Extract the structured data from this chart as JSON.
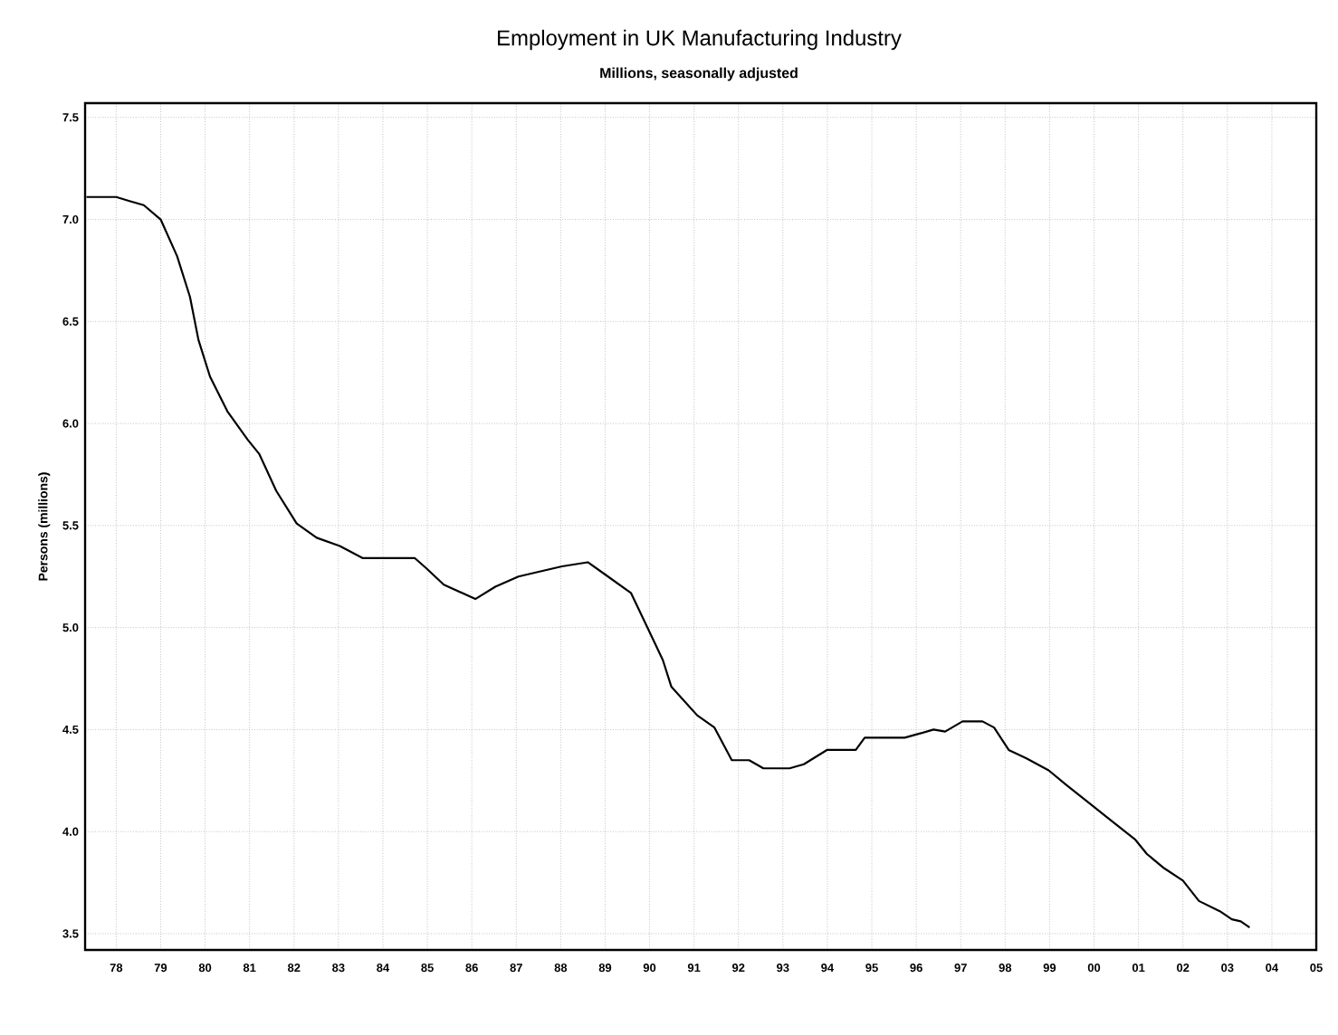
{
  "chart_data": {
    "type": "line",
    "title": "Employment in UK Manufacturing Industry",
    "subtitle": "Millions, seasonally adjusted",
    "ylabel": "Persons (millions)",
    "x": [
      1977.33,
      1978.0,
      1978.3,
      1978.62,
      1979.0,
      1979.37,
      1979.66,
      1979.85,
      1980.11,
      1980.5,
      1980.96,
      1981.22,
      1981.6,
      1982.06,
      1982.51,
      1983.03,
      1983.55,
      1984.72,
      1984.98,
      1985.37,
      1986.08,
      1986.53,
      1987.05,
      1987.44,
      1988.03,
      1988.61,
      1989.0,
      1989.58,
      1990.04,
      1990.3,
      1990.49,
      1991.07,
      1991.46,
      1991.85,
      1992.24,
      1992.56,
      1993.15,
      1993.47,
      1993.99,
      1994.64,
      1994.84,
      1995.74,
      1996.07,
      1996.39,
      1996.65,
      1997.04,
      1997.49,
      1997.75,
      1998.08,
      1998.47,
      1998.98,
      1999.37,
      1999.89,
      2000.35,
      2000.93,
      2001.19,
      2001.58,
      2002.0,
      2002.36,
      2002.83,
      2003.1,
      2003.3,
      2003.5
    ],
    "values": [
      7.11,
      7.11,
      7.09,
      7.07,
      7.0,
      6.82,
      6.62,
      6.41,
      6.23,
      6.06,
      5.92,
      5.85,
      5.67,
      5.51,
      5.44,
      5.4,
      5.34,
      5.34,
      5.29,
      5.21,
      5.14,
      5.2,
      5.25,
      5.27,
      5.3,
      5.32,
      5.26,
      5.17,
      4.96,
      4.84,
      4.71,
      4.57,
      4.51,
      4.35,
      4.35,
      4.31,
      4.31,
      4.33,
      4.4,
      4.4,
      4.46,
      4.46,
      4.48,
      4.5,
      4.49,
      4.54,
      4.54,
      4.51,
      4.4,
      4.36,
      4.3,
      4.23,
      4.14,
      4.06,
      3.96,
      3.89,
      3.82,
      3.76,
      3.66,
      3.61,
      3.57,
      3.56,
      3.53
    ],
    "color": "#000000",
    "line_style": "solid",
    "grid": true,
    "xlim": [
      1977.3,
      2005
    ],
    "ylim": [
      3.42,
      7.57
    ],
    "xticks": [
      {
        "value": 1978,
        "label": "78"
      },
      {
        "value": 1979,
        "label": "79"
      },
      {
        "value": 1980,
        "label": "80"
      },
      {
        "value": 1981,
        "label": "81"
      },
      {
        "value": 1982,
        "label": "82"
      },
      {
        "value": 1983,
        "label": "83"
      },
      {
        "value": 1984,
        "label": "84"
      },
      {
        "value": 1985,
        "label": "85"
      },
      {
        "value": 1986,
        "label": "86"
      },
      {
        "value": 1987,
        "label": "87"
      },
      {
        "value": 1988,
        "label": "88"
      },
      {
        "value": 1989,
        "label": "89"
      },
      {
        "value": 1990,
        "label": "90"
      },
      {
        "value": 1991,
        "label": "91"
      },
      {
        "value": 1992,
        "label": "92"
      },
      {
        "value": 1993,
        "label": "93"
      },
      {
        "value": 1994,
        "label": "94"
      },
      {
        "value": 1995,
        "label": "95"
      },
      {
        "value": 1996,
        "label": "96"
      },
      {
        "value": 1997,
        "label": "97"
      },
      {
        "value": 1998,
        "label": "98"
      },
      {
        "value": 1999,
        "label": "99"
      },
      {
        "value": 2000,
        "label": "00"
      },
      {
        "value": 2001,
        "label": "01"
      },
      {
        "value": 2002,
        "label": "02"
      },
      {
        "value": 2003,
        "label": "03"
      },
      {
        "value": 2004,
        "label": "04"
      },
      {
        "value": 2005,
        "label": "05"
      }
    ],
    "yticks": [
      3.5,
      {
        "value": 4,
        "label": "4.0"
      },
      4.5,
      {
        "value": 5,
        "label": "5.0"
      },
      5.5,
      {
        "value": 6,
        "label": "6.0"
      },
      6.5,
      {
        "value": 7,
        "label": "7.0"
      },
      7.5
    ]
  }
}
